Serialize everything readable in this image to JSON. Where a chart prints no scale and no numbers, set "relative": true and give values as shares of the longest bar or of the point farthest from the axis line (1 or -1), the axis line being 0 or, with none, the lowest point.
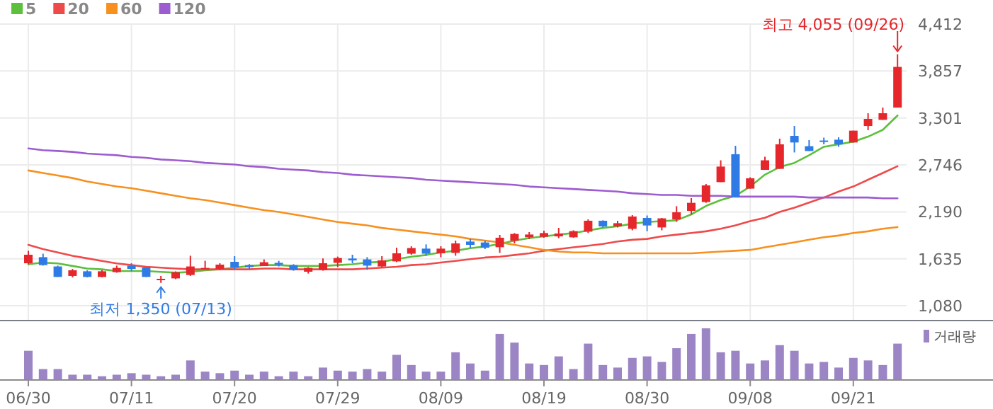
{
  "chart_data": [
    {
      "type": "candlestick",
      "grid": true,
      "legend": "top left",
      "categories": [
        "06/30",
        null,
        null,
        null,
        null,
        null,
        null,
        "07/11",
        null,
        null,
        null,
        null,
        null,
        null,
        "07/20",
        null,
        null,
        null,
        null,
        null,
        null,
        "07/29",
        null,
        null,
        null,
        null,
        null,
        null,
        "08/09",
        null,
        null,
        null,
        null,
        null,
        null,
        "08/19",
        null,
        null,
        null,
        null,
        null,
        null,
        "08/30",
        null,
        null,
        null,
        null,
        null,
        null,
        "09/08",
        null,
        null,
        null,
        null,
        null,
        null,
        "09/21",
        null,
        null,
        null
      ],
      "ohlc": [
        [
          1582,
          1728,
          1570,
          1683
        ],
        [
          1654,
          1695,
          1554,
          1560
        ],
        [
          1544,
          1554,
          1420,
          1420
        ],
        [
          1432,
          1515,
          1415,
          1499
        ],
        [
          1487,
          1499,
          1415,
          1420
        ],
        [
          1420,
          1499,
          1415,
          1487
        ],
        [
          1477,
          1554,
          1470,
          1527
        ],
        [
          1554,
          1582,
          1487,
          1515
        ],
        [
          1532,
          1532,
          1420,
          1420
        ],
        [
          1386,
          1432,
          1350,
          1398
        ],
        [
          1403,
          1487,
          1393,
          1477
        ],
        [
          1443,
          1671,
          1432,
          1544
        ],
        [
          1515,
          1611,
          1515,
          1527
        ],
        [
          1515,
          1582,
          1504,
          1566
        ],
        [
          1599,
          1666,
          1515,
          1532
        ],
        [
          1560,
          1571,
          1515,
          1537
        ],
        [
          1549,
          1628,
          1549,
          1594
        ],
        [
          1587,
          1611,
          1544,
          1566
        ],
        [
          1560,
          1571,
          1494,
          1504
        ],
        [
          1482,
          1537,
          1460,
          1527
        ],
        [
          1504,
          1638,
          1494,
          1582
        ],
        [
          1587,
          1661,
          1537,
          1644
        ],
        [
          1638,
          1683,
          1582,
          1616
        ],
        [
          1628,
          1654,
          1504,
          1554
        ],
        [
          1544,
          1666,
          1532,
          1616
        ],
        [
          1604,
          1766,
          1594,
          1700
        ],
        [
          1695,
          1783,
          1683,
          1762
        ],
        [
          1755,
          1805,
          1671,
          1695
        ],
        [
          1700,
          1783,
          1654,
          1755
        ],
        [
          1705,
          1850,
          1671,
          1817
        ],
        [
          1839,
          1872,
          1761,
          1800
        ],
        [
          1828,
          1850,
          1750,
          1766
        ],
        [
          1772,
          1917,
          1705,
          1884
        ],
        [
          1850,
          1939,
          1817,
          1929
        ],
        [
          1889,
          1951,
          1867,
          1922
        ],
        [
          1895,
          1967,
          1884,
          1939
        ],
        [
          1900,
          2001,
          1879,
          1934
        ],
        [
          1889,
          1972,
          1884,
          1962
        ],
        [
          1956,
          2101,
          1939,
          2085
        ],
        [
          2085,
          2090,
          2006,
          2018
        ],
        [
          2018,
          2085,
          2006,
          2056
        ],
        [
          1989,
          2152,
          1972,
          2135
        ],
        [
          2118,
          2147,
          1962,
          2029
        ],
        [
          2006,
          2118,
          1972,
          2113
        ],
        [
          2101,
          2257,
          2073,
          2185
        ],
        [
          2202,
          2353,
          2157,
          2297
        ],
        [
          2307,
          2520,
          2297,
          2503
        ],
        [
          2542,
          2800,
          2542,
          2726
        ],
        [
          2872,
          2972,
          2364,
          2364
        ],
        [
          2465,
          2599,
          2465,
          2587
        ],
        [
          2687,
          2843,
          2687,
          2800
        ],
        [
          2699,
          3056,
          2699,
          2989
        ],
        [
          3089,
          3206,
          2893,
          3011
        ],
        [
          2967,
          3039,
          2910,
          2910
        ],
        [
          3034,
          3068,
          2989,
          3017
        ],
        [
          3044,
          3073,
          2960,
          2989
        ],
        [
          3011,
          3151,
          3011,
          3151
        ],
        [
          3206,
          3357,
          3156,
          3290
        ],
        [
          3279,
          3424,
          3279,
          3357
        ],
        [
          3424,
          4055,
          3424,
          3905
        ]
      ],
      "colors": [
        "#e5262b",
        "#2f7be5",
        "#2f7be5",
        "#e5262b",
        "#2f7be5",
        "#e5262b",
        "#e5262b",
        "#2f7be5",
        "#2f7be5",
        "#e5262b",
        "#e5262b",
        "#e5262b",
        "#e5262b",
        "#e5262b",
        "#2f7be5",
        "#2f7be5",
        "#e5262b",
        "#2f7be5",
        "#2f7be5",
        "#e5262b",
        "#e5262b",
        "#e5262b",
        "#2f7be5",
        "#2f7be5",
        "#e5262b",
        "#e5262b",
        "#e5262b",
        "#2f7be5",
        "#e5262b",
        "#e5262b",
        "#2f7be5",
        "#2f7be5",
        "#e5262b",
        "#e5262b",
        "#e5262b",
        "#e5262b",
        "#e5262b",
        "#e5262b",
        "#e5262b",
        "#2f7be5",
        "#e5262b",
        "#e5262b",
        "#2f7be5",
        "#e5262b",
        "#e5262b",
        "#e5262b",
        "#e5262b",
        "#e5262b",
        "#2f7be5",
        "#e5262b",
        "#e5262b",
        "#e5262b",
        "#2f7be5",
        "#2f7be5",
        "#2f7be5",
        "#2f7be5",
        "#e5262b",
        "#e5262b",
        "#e5262b",
        "#e5262b"
      ],
      "series": [
        {
          "name": "5",
          "type": "line",
          "color": "#5cc03c",
          "values": [
            1570,
            1590,
            1580,
            1550,
            1520,
            1510,
            1490,
            1490,
            1490,
            1480,
            1470,
            1480,
            1500,
            1510,
            1530,
            1550,
            1560,
            1560,
            1550,
            1550,
            1550,
            1560,
            1570,
            1590,
            1600,
            1630,
            1660,
            1680,
            1710,
            1730,
            1760,
            1780,
            1810,
            1850,
            1880,
            1900,
            1920,
            1940,
            1970,
            2000,
            2020,
            2050,
            2070,
            2080,
            2090,
            2160,
            2260,
            2330,
            2380,
            2490,
            2630,
            2720,
            2770,
            2860,
            2960,
            2990,
            3020,
            3080,
            3160,
            3330
          ]
        },
        {
          "name": "20",
          "type": "line",
          "color": "#ef4a4a",
          "values": [
            1800,
            1750,
            1710,
            1670,
            1640,
            1610,
            1580,
            1560,
            1540,
            1530,
            1520,
            1510,
            1510,
            1510,
            1510,
            1510,
            1520,
            1520,
            1510,
            1510,
            1510,
            1510,
            1510,
            1520,
            1530,
            1540,
            1560,
            1570,
            1590,
            1610,
            1630,
            1650,
            1660,
            1680,
            1700,
            1730,
            1750,
            1770,
            1790,
            1810,
            1840,
            1860,
            1870,
            1900,
            1920,
            1940,
            1960,
            1990,
            2030,
            2080,
            2120,
            2190,
            2240,
            2300,
            2360,
            2430,
            2490,
            2570,
            2650,
            2730
          ]
        },
        {
          "name": "60",
          "type": "line",
          "color": "#f7901e",
          "values": [
            2680,
            2650,
            2620,
            2590,
            2550,
            2520,
            2490,
            2470,
            2440,
            2410,
            2380,
            2350,
            2330,
            2300,
            2270,
            2240,
            2210,
            2190,
            2160,
            2130,
            2100,
            2070,
            2050,
            2030,
            2000,
            1980,
            1960,
            1940,
            1920,
            1900,
            1870,
            1850,
            1830,
            1800,
            1770,
            1740,
            1720,
            1710,
            1710,
            1700,
            1700,
            1700,
            1700,
            1700,
            1700,
            1700,
            1710,
            1720,
            1730,
            1740,
            1770,
            1800,
            1830,
            1860,
            1890,
            1910,
            1940,
            1960,
            1990,
            2010
          ]
        },
        {
          "name": "120",
          "type": "line",
          "color": "#9d5ccf",
          "values": [
            2940,
            2920,
            2910,
            2900,
            2880,
            2870,
            2860,
            2840,
            2830,
            2810,
            2800,
            2790,
            2770,
            2760,
            2750,
            2730,
            2720,
            2700,
            2690,
            2680,
            2660,
            2650,
            2630,
            2620,
            2610,
            2600,
            2590,
            2570,
            2560,
            2550,
            2540,
            2530,
            2520,
            2510,
            2490,
            2480,
            2470,
            2460,
            2450,
            2440,
            2430,
            2410,
            2400,
            2390,
            2390,
            2380,
            2380,
            2380,
            2370,
            2370,
            2370,
            2370,
            2370,
            2360,
            2360,
            2360,
            2360,
            2360,
            2350,
            2350
          ]
        }
      ],
      "ylim": [
        1080,
        4412
      ],
      "yticks": [
        {
          "value": 1080,
          "label": "1,080"
        },
        {
          "value": 1635,
          "label": "1,635"
        },
        {
          "value": 2190,
          "label": "2,190"
        },
        {
          "value": 2746,
          "label": "2,746"
        },
        {
          "value": 3301,
          "label": "3,301"
        },
        {
          "value": 3857,
          "label": "3,857"
        },
        {
          "value": 4412,
          "label": "4,412"
        }
      ],
      "annotations": [
        "최고 4,055 (09/26)",
        "최저 1,350 (07/13)"
      ]
    },
    {
      "type": "bar",
      "relative": true,
      "legend": "top right",
      "categories": [
        null,
        null,
        null,
        null,
        null,
        null,
        null,
        null,
        null,
        null,
        null,
        null,
        null,
        null,
        null,
        null,
        null,
        null,
        null,
        null,
        null,
        null,
        null,
        null,
        null,
        null,
        null,
        null,
        null,
        null,
        null,
        null,
        null,
        null,
        null,
        null,
        null,
        null,
        null,
        null,
        null,
        null,
        null,
        null,
        null,
        null,
        null,
        null,
        null,
        null,
        null,
        null,
        null,
        null,
        null,
        null,
        null,
        null,
        null,
        null
      ],
      "series": [
        {
          "name": "거래량",
          "color": "#9b85c4",
          "values": [
            0.56,
            0.2,
            0.2,
            0.09,
            0.09,
            0.06,
            0.09,
            0.12,
            0.09,
            0.06,
            0.09,
            0.37,
            0.15,
            0.12,
            0.17,
            0.09,
            0.15,
            0.06,
            0.15,
            0.06,
            0.23,
            0.17,
            0.15,
            0.2,
            0.15,
            0.48,
            0.28,
            0.15,
            0.15,
            0.53,
            0.31,
            0.17,
            0.89,
            0.72,
            0.31,
            0.28,
            0.45,
            0.2,
            0.7,
            0.28,
            0.23,
            0.42,
            0.45,
            0.34,
            0.61,
            0.89,
            1,
            0.53,
            0.56,
            0.31,
            0.37,
            0.67,
            0.56,
            0.31,
            0.34,
            0.23,
            0.42,
            0.37,
            0.28,
            0.7
          ]
        }
      ]
    }
  ]
}
